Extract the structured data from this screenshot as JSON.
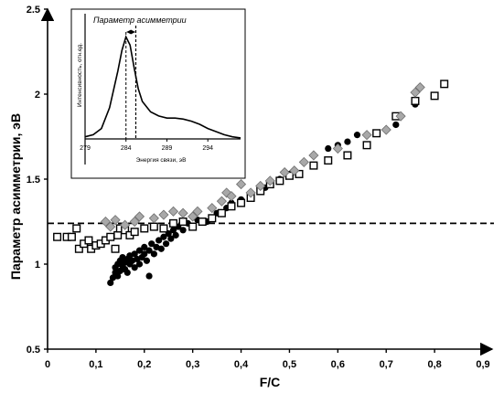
{
  "chart_data": [
    {
      "type": "scatter",
      "title": "",
      "xlabel": "F/C",
      "ylabel": "Параметр асимметрии, эВ",
      "xlim": [
        0,
        0.9
      ],
      "ylim": [
        0.5,
        2.5
      ],
      "x_ticks": [
        "0",
        "0,1",
        "0,2",
        "0,3",
        "0,4",
        "0,5",
        "0,6",
        "0,7",
        "0,8",
        "0,9"
      ],
      "y_ticks": [
        "0.5",
        "1",
        "1.5",
        "2",
        "2.5"
      ],
      "grid": false,
      "legend": "none",
      "reference_line": {
        "y": 1.24,
        "style": "dashed"
      },
      "series": [
        {
          "marker": "filled-circle",
          "color": "#000000",
          "points": [
            [
              0.13,
              0.89
            ],
            [
              0.135,
              0.92
            ],
            [
              0.14,
              0.95
            ],
            [
              0.14,
              0.98
            ],
            [
              0.145,
              0.93
            ],
            [
              0.145,
              1.0
            ],
            [
              0.15,
              0.96
            ],
            [
              0.15,
              1.02
            ],
            [
              0.155,
              0.99
            ],
            [
              0.155,
              1.04
            ],
            [
              0.16,
              0.97
            ],
            [
              0.16,
              1.01
            ],
            [
              0.165,
              1.03
            ],
            [
              0.165,
              0.95
            ],
            [
              0.17,
              1.0
            ],
            [
              0.17,
              1.05
            ],
            [
              0.175,
              1.02
            ],
            [
              0.18,
              0.98
            ],
            [
              0.18,
              1.06
            ],
            [
              0.185,
              1.03
            ],
            [
              0.19,
              1.08
            ],
            [
              0.19,
              1.0
            ],
            [
              0.195,
              1.04
            ],
            [
              0.2,
              1.06
            ],
            [
              0.2,
              1.1
            ],
            [
              0.205,
              1.02
            ],
            [
              0.21,
              1.08
            ],
            [
              0.21,
              0.93
            ],
            [
              0.215,
              1.12
            ],
            [
              0.22,
              1.06
            ],
            [
              0.225,
              1.1
            ],
            [
              0.23,
              1.14
            ],
            [
              0.235,
              1.09
            ],
            [
              0.24,
              1.16
            ],
            [
              0.245,
              1.12
            ],
            [
              0.25,
              1.18
            ],
            [
              0.255,
              1.15
            ],
            [
              0.26,
              1.2
            ],
            [
              0.265,
              1.17
            ],
            [
              0.27,
              1.22
            ],
            [
              0.28,
              1.2
            ],
            [
              0.29,
              1.24
            ],
            [
              0.3,
              1.22
            ],
            [
              0.31,
              1.26
            ],
            [
              0.33,
              1.25
            ],
            [
              0.35,
              1.3
            ],
            [
              0.37,
              1.33
            ],
            [
              0.38,
              1.36
            ],
            [
              0.4,
              1.38
            ],
            [
              0.42,
              1.4
            ],
            [
              0.45,
              1.45
            ],
            [
              0.48,
              1.5
            ],
            [
              0.5,
              1.53
            ],
            [
              0.55,
              1.58
            ],
            [
              0.58,
              1.68
            ],
            [
              0.6,
              1.7
            ],
            [
              0.62,
              1.72
            ],
            [
              0.64,
              1.76
            ],
            [
              0.72,
              1.82
            ],
            [
              0.76,
              1.94
            ]
          ]
        },
        {
          "marker": "open-square",
          "color": "#000000",
          "points": [
            [
              0.02,
              1.16
            ],
            [
              0.04,
              1.16
            ],
            [
              0.05,
              1.16
            ],
            [
              0.06,
              1.21
            ],
            [
              0.065,
              1.09
            ],
            [
              0.075,
              1.12
            ],
            [
              0.085,
              1.14
            ],
            [
              0.09,
              1.09
            ],
            [
              0.1,
              1.11
            ],
            [
              0.11,
              1.12
            ],
            [
              0.12,
              1.14
            ],
            [
              0.13,
              1.16
            ],
            [
              0.14,
              1.09
            ],
            [
              0.145,
              1.17
            ],
            [
              0.15,
              1.21
            ],
            [
              0.16,
              1.2
            ],
            [
              0.17,
              1.17
            ],
            [
              0.18,
              1.19
            ],
            [
              0.2,
              1.21
            ],
            [
              0.22,
              1.22
            ],
            [
              0.24,
              1.21
            ],
            [
              0.26,
              1.24
            ],
            [
              0.28,
              1.25
            ],
            [
              0.3,
              1.22
            ],
            [
              0.32,
              1.25
            ],
            [
              0.34,
              1.27
            ],
            [
              0.36,
              1.3
            ],
            [
              0.38,
              1.34
            ],
            [
              0.4,
              1.36
            ],
            [
              0.42,
              1.39
            ],
            [
              0.44,
              1.43
            ],
            [
              0.46,
              1.47
            ],
            [
              0.48,
              1.49
            ],
            [
              0.5,
              1.52
            ],
            [
              0.52,
              1.53
            ],
            [
              0.55,
              1.58
            ],
            [
              0.58,
              1.61
            ],
            [
              0.62,
              1.64
            ],
            [
              0.66,
              1.7
            ],
            [
              0.68,
              1.77
            ],
            [
              0.72,
              1.87
            ],
            [
              0.76,
              1.96
            ],
            [
              0.8,
              1.99
            ],
            [
              0.82,
              2.06
            ]
          ]
        },
        {
          "marker": "gray-diamond",
          "color": "#a8a8a8",
          "points": [
            [
              0.12,
              1.25
            ],
            [
              0.13,
              1.22
            ],
            [
              0.14,
              1.26
            ],
            [
              0.16,
              1.23
            ],
            [
              0.18,
              1.25
            ],
            [
              0.19,
              1.28
            ],
            [
              0.22,
              1.27
            ],
            [
              0.24,
              1.29
            ],
            [
              0.26,
              1.31
            ],
            [
              0.28,
              1.3
            ],
            [
              0.3,
              1.28
            ],
            [
              0.31,
              1.31
            ],
            [
              0.34,
              1.33
            ],
            [
              0.36,
              1.37
            ],
            [
              0.37,
              1.42
            ],
            [
              0.38,
              1.4
            ],
            [
              0.4,
              1.47
            ],
            [
              0.42,
              1.42
            ],
            [
              0.44,
              1.46
            ],
            [
              0.46,
              1.49
            ],
            [
              0.49,
              1.54
            ],
            [
              0.51,
              1.55
            ],
            [
              0.53,
              1.6
            ],
            [
              0.55,
              1.64
            ],
            [
              0.6,
              1.68
            ],
            [
              0.66,
              1.76
            ],
            [
              0.7,
              1.79
            ],
            [
              0.73,
              1.87
            ],
            [
              0.76,
              2.01
            ],
            [
              0.77,
              2.04
            ]
          ]
        }
      ]
    },
    {
      "type": "line",
      "title": "Параметр асимметрии",
      "xlabel": "Энергия связи, эВ",
      "ylabel": "Интенсивность, отн.ед.",
      "xlim": [
        279,
        298
      ],
      "x_ticks": [
        "279",
        "284",
        "289",
        "294"
      ],
      "peak_x": 284,
      "asymmetry_marker_x": 285.2,
      "series": [
        {
          "name": "",
          "x": [
            279,
            280,
            281,
            282,
            283,
            283.5,
            284,
            284.5,
            285,
            285.5,
            286,
            287,
            288,
            289,
            290,
            291,
            292,
            293,
            294,
            295,
            296,
            297,
            298
          ],
          "y": [
            0.02,
            0.04,
            0.1,
            0.3,
            0.65,
            0.85,
            0.98,
            0.9,
            0.68,
            0.48,
            0.36,
            0.26,
            0.22,
            0.2,
            0.2,
            0.19,
            0.17,
            0.14,
            0.1,
            0.07,
            0.04,
            0.02,
            0.01
          ]
        }
      ]
    }
  ]
}
